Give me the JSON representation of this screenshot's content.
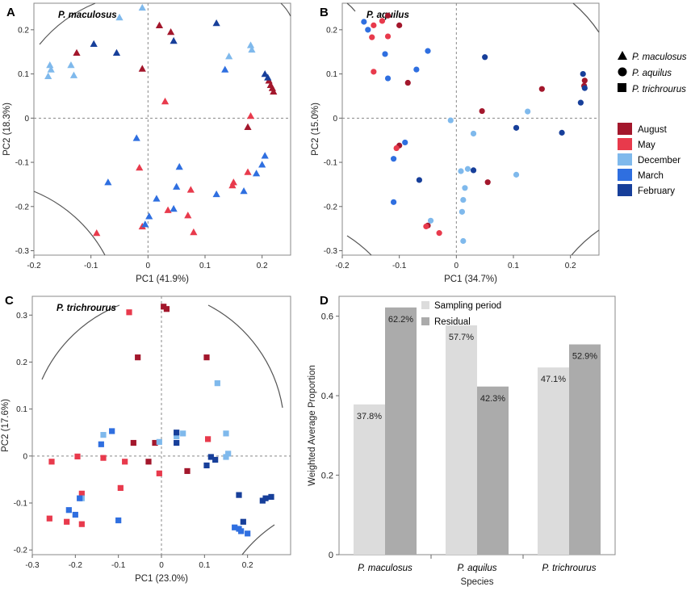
{
  "chart_data": [
    {
      "panel": "A",
      "type": "scatter",
      "title": "P. maculosus",
      "xlabel": "PC1 (41.9%)",
      "ylabel": "PC2 (18.3%)",
      "xlim": [
        -0.2,
        0.25
      ],
      "ylim": [
        -0.31,
        0.26
      ],
      "xticks": [
        -0.2,
        -0.1,
        0,
        0.1,
        0.2
      ],
      "yticks": [
        -0.3,
        -0.2,
        -0.1,
        0,
        0.1,
        0.2
      ],
      "xtick_labels": [
        "-0.2",
        "-0.1",
        "0",
        "0.1",
        "0.2"
      ],
      "ytick_labels": [
        "-0.3",
        "-0.2",
        "-0.1",
        "0",
        "0.1",
        "0.2"
      ],
      "marker": "triangle",
      "points": [
        {
          "x": -0.125,
          "y": 0.148,
          "m": "August"
        },
        {
          "x": 0.02,
          "y": 0.21,
          "m": "August"
        },
        {
          "x": 0.04,
          "y": 0.195,
          "m": "August"
        },
        {
          "x": -0.01,
          "y": 0.112,
          "m": "August"
        },
        {
          "x": 0.212,
          "y": 0.085,
          "m": "August"
        },
        {
          "x": 0.215,
          "y": 0.075,
          "m": "August"
        },
        {
          "x": 0.218,
          "y": 0.068,
          "m": "August"
        },
        {
          "x": 0.22,
          "y": 0.06,
          "m": "August"
        },
        {
          "x": 0.175,
          "y": -0.02,
          "m": "August"
        },
        {
          "x": 0.03,
          "y": 0.038,
          "m": "May"
        },
        {
          "x": 0.18,
          "y": 0.005,
          "m": "May"
        },
        {
          "x": -0.015,
          "y": -0.112,
          "m": "May"
        },
        {
          "x": 0.035,
          "y": -0.208,
          "m": "May"
        },
        {
          "x": 0.075,
          "y": -0.162,
          "m": "May"
        },
        {
          "x": 0.07,
          "y": -0.22,
          "m": "May"
        },
        {
          "x": 0.15,
          "y": -0.145,
          "m": "May"
        },
        {
          "x": 0.148,
          "y": -0.152,
          "m": "May"
        },
        {
          "x": 0.175,
          "y": -0.122,
          "m": "May"
        },
        {
          "x": -0.01,
          "y": -0.245,
          "m": "May"
        },
        {
          "x": 0.08,
          "y": -0.258,
          "m": "May"
        },
        {
          "x": -0.09,
          "y": -0.26,
          "m": "May"
        },
        {
          "x": -0.05,
          "y": 0.228,
          "m": "December"
        },
        {
          "x": -0.01,
          "y": 0.25,
          "m": "December"
        },
        {
          "x": -0.172,
          "y": 0.12,
          "m": "December"
        },
        {
          "x": -0.17,
          "y": 0.11,
          "m": "December"
        },
        {
          "x": -0.175,
          "y": 0.095,
          "m": "December"
        },
        {
          "x": -0.135,
          "y": 0.12,
          "m": "December"
        },
        {
          "x": -0.13,
          "y": 0.097,
          "m": "December"
        },
        {
          "x": 0.18,
          "y": 0.165,
          "m": "December"
        },
        {
          "x": 0.182,
          "y": 0.155,
          "m": "December"
        },
        {
          "x": 0.142,
          "y": 0.14,
          "m": "December"
        },
        {
          "x": -0.02,
          "y": -0.045,
          "m": "March"
        },
        {
          "x": 0.055,
          "y": -0.11,
          "m": "March"
        },
        {
          "x": 0.05,
          "y": -0.155,
          "m": "March"
        },
        {
          "x": 0.045,
          "y": -0.205,
          "m": "March"
        },
        {
          "x": 0.015,
          "y": -0.182,
          "m": "March"
        },
        {
          "x": -0.07,
          "y": -0.145,
          "m": "March"
        },
        {
          "x": 0.135,
          "y": 0.11,
          "m": "March"
        },
        {
          "x": 0.205,
          "y": -0.085,
          "m": "March"
        },
        {
          "x": 0.2,
          "y": -0.105,
          "m": "March"
        },
        {
          "x": 0.19,
          "y": -0.125,
          "m": "March"
        },
        {
          "x": 0.168,
          "y": -0.165,
          "m": "March"
        },
        {
          "x": 0.12,
          "y": -0.172,
          "m": "March"
        },
        {
          "x": 0.002,
          "y": -0.222,
          "m": "March"
        },
        {
          "x": -0.005,
          "y": -0.24,
          "m": "March"
        },
        {
          "x": -0.095,
          "y": 0.168,
          "m": "February"
        },
        {
          "x": -0.055,
          "y": 0.148,
          "m": "February"
        },
        {
          "x": 0.12,
          "y": 0.215,
          "m": "February"
        },
        {
          "x": 0.045,
          "y": 0.175,
          "m": "February"
        },
        {
          "x": 0.21,
          "y": 0.092,
          "m": "February"
        },
        {
          "x": 0.205,
          "y": 0.1,
          "m": "February"
        }
      ]
    },
    {
      "panel": "B",
      "type": "scatter",
      "title": "P. aquilus",
      "xlabel": "PC1 (34.7%)",
      "ylabel": "PC2 (15.0%)",
      "xlim": [
        -0.2,
        0.25
      ],
      "ylim": [
        -0.31,
        0.26
      ],
      "xticks": [
        -0.2,
        -0.1,
        0,
        0.1,
        0.2
      ],
      "yticks": [
        -0.3,
        -0.2,
        -0.1,
        0,
        0.1,
        0.2
      ],
      "xtick_labels": [
        "-0.2",
        "-0.1",
        "0",
        "0.1",
        "0.2"
      ],
      "ytick_labels": [
        "-0.3",
        "-0.2",
        "-0.1",
        "0",
        "0.1",
        "0.2"
      ],
      "marker": "circle",
      "points": [
        {
          "x": -0.12,
          "y": 0.232,
          "m": "August"
        },
        {
          "x": -0.1,
          "y": 0.21,
          "m": "August"
        },
        {
          "x": -0.085,
          "y": 0.08,
          "m": "August"
        },
        {
          "x": 0.15,
          "y": 0.066,
          "m": "August"
        },
        {
          "x": 0.225,
          "y": 0.085,
          "m": "August"
        },
        {
          "x": 0.224,
          "y": 0.073,
          "m": "August"
        },
        {
          "x": 0.045,
          "y": 0.016,
          "m": "August"
        },
        {
          "x": 0.055,
          "y": -0.145,
          "m": "August"
        },
        {
          "x": -0.1,
          "y": -0.062,
          "m": "August"
        },
        {
          "x": -0.05,
          "y": -0.243,
          "m": "August"
        },
        {
          "x": -0.145,
          "y": 0.21,
          "m": "May"
        },
        {
          "x": -0.13,
          "y": 0.22,
          "m": "May"
        },
        {
          "x": -0.148,
          "y": 0.183,
          "m": "May"
        },
        {
          "x": -0.12,
          "y": 0.185,
          "m": "May"
        },
        {
          "x": -0.145,
          "y": 0.105,
          "m": "May"
        },
        {
          "x": -0.105,
          "y": -0.068,
          "m": "May"
        },
        {
          "x": -0.053,
          "y": -0.245,
          "m": "May"
        },
        {
          "x": -0.03,
          "y": -0.26,
          "m": "May"
        },
        {
          "x": -0.045,
          "y": -0.232,
          "m": "December"
        },
        {
          "x": -0.01,
          "y": -0.005,
          "m": "December"
        },
        {
          "x": 0.03,
          "y": -0.035,
          "m": "December"
        },
        {
          "x": 0.125,
          "y": 0.015,
          "m": "December"
        },
        {
          "x": 0.105,
          "y": -0.128,
          "m": "December"
        },
        {
          "x": 0.008,
          "y": -0.12,
          "m": "December"
        },
        {
          "x": 0.02,
          "y": -0.115,
          "m": "December"
        },
        {
          "x": 0.015,
          "y": -0.158,
          "m": "December"
        },
        {
          "x": 0.012,
          "y": -0.185,
          "m": "December"
        },
        {
          "x": 0.01,
          "y": -0.212,
          "m": "December"
        },
        {
          "x": 0.012,
          "y": -0.278,
          "m": "December"
        },
        {
          "x": -0.162,
          "y": 0.218,
          "m": "March"
        },
        {
          "x": -0.155,
          "y": 0.2,
          "m": "March"
        },
        {
          "x": -0.125,
          "y": 0.145,
          "m": "March"
        },
        {
          "x": -0.07,
          "y": 0.11,
          "m": "March"
        },
        {
          "x": -0.05,
          "y": 0.152,
          "m": "March"
        },
        {
          "x": -0.12,
          "y": 0.09,
          "m": "March"
        },
        {
          "x": -0.09,
          "y": -0.055,
          "m": "March"
        },
        {
          "x": -0.11,
          "y": -0.092,
          "m": "March"
        },
        {
          "x": -0.11,
          "y": -0.19,
          "m": "March"
        },
        {
          "x": 0.05,
          "y": 0.138,
          "m": "February"
        },
        {
          "x": 0.222,
          "y": 0.1,
          "m": "February"
        },
        {
          "x": 0.225,
          "y": 0.068,
          "m": "February"
        },
        {
          "x": 0.218,
          "y": 0.035,
          "m": "February"
        },
        {
          "x": 0.185,
          "y": -0.033,
          "m": "February"
        },
        {
          "x": 0.105,
          "y": -0.022,
          "m": "February"
        },
        {
          "x": 0.03,
          "y": -0.118,
          "m": "February"
        },
        {
          "x": -0.065,
          "y": -0.14,
          "m": "February"
        }
      ]
    },
    {
      "panel": "C",
      "type": "scatter",
      "title": "P. trichrourus",
      "xlabel": "PC1 (23.0%)",
      "ylabel": "PC2 (17.6%)",
      "xlim": [
        -0.3,
        0.3
      ],
      "ylim": [
        -0.21,
        0.34
      ],
      "xticks": [
        -0.3,
        -0.2,
        -0.1,
        0,
        0.1,
        0.2
      ],
      "yticks": [
        -0.2,
        -0.1,
        0,
        0.1,
        0.2,
        0.3
      ],
      "xtick_labels": [
        "-0.3",
        "-0.2",
        "-0.1",
        "0",
        "0.1",
        "0.2"
      ],
      "ytick_labels": [
        "-0.2",
        "-0.1",
        "0",
        "0.1",
        "0.2",
        "0.3"
      ],
      "marker": "square",
      "points": [
        {
          "x": 0.005,
          "y": 0.318,
          "m": "August"
        },
        {
          "x": 0.012,
          "y": 0.313,
          "m": "August"
        },
        {
          "x": -0.055,
          "y": 0.21,
          "m": "August"
        },
        {
          "x": 0.105,
          "y": 0.21,
          "m": "August"
        },
        {
          "x": -0.065,
          "y": 0.028,
          "m": "August"
        },
        {
          "x": -0.015,
          "y": 0.028,
          "m": "August"
        },
        {
          "x": -0.03,
          "y": -0.012,
          "m": "August"
        },
        {
          "x": 0.06,
          "y": -0.032,
          "m": "August"
        },
        {
          "x": -0.075,
          "y": 0.306,
          "m": "May"
        },
        {
          "x": 0.108,
          "y": 0.036,
          "m": "May"
        },
        {
          "x": -0.255,
          "y": -0.012,
          "m": "May"
        },
        {
          "x": -0.195,
          "y": -0.001,
          "m": "May"
        },
        {
          "x": -0.135,
          "y": -0.004,
          "m": "May"
        },
        {
          "x": -0.085,
          "y": -0.012,
          "m": "May"
        },
        {
          "x": -0.005,
          "y": -0.037,
          "m": "May"
        },
        {
          "x": -0.095,
          "y": -0.068,
          "m": "May"
        },
        {
          "x": -0.185,
          "y": -0.08,
          "m": "May"
        },
        {
          "x": -0.26,
          "y": -0.133,
          "m": "May"
        },
        {
          "x": -0.22,
          "y": -0.14,
          "m": "May"
        },
        {
          "x": -0.185,
          "y": -0.145,
          "m": "May"
        },
        {
          "x": 0.13,
          "y": 0.155,
          "m": "December"
        },
        {
          "x": 0.15,
          "y": 0.048,
          "m": "December"
        },
        {
          "x": 0.05,
          "y": 0.048,
          "m": "December"
        },
        {
          "x": 0.035,
          "y": 0.042,
          "m": "December"
        },
        {
          "x": -0.005,
          "y": 0.03,
          "m": "December"
        },
        {
          "x": 0.15,
          "y": -0.002,
          "m": "December"
        },
        {
          "x": 0.155,
          "y": 0.005,
          "m": "December"
        },
        {
          "x": -0.135,
          "y": 0.045,
          "m": "December"
        },
        {
          "x": -0.185,
          "y": -0.09,
          "m": "December"
        },
        {
          "x": -0.115,
          "y": 0.053,
          "m": "March"
        },
        {
          "x": -0.14,
          "y": 0.025,
          "m": "March"
        },
        {
          "x": -0.19,
          "y": -0.09,
          "m": "March"
        },
        {
          "x": -0.215,
          "y": -0.115,
          "m": "March"
        },
        {
          "x": -0.2,
          "y": -0.125,
          "m": "March"
        },
        {
          "x": -0.1,
          "y": -0.137,
          "m": "March"
        },
        {
          "x": 0.17,
          "y": -0.152,
          "m": "March"
        },
        {
          "x": 0.18,
          "y": -0.155,
          "m": "March"
        },
        {
          "x": 0.185,
          "y": -0.16,
          "m": "March"
        },
        {
          "x": 0.2,
          "y": -0.165,
          "m": "March"
        },
        {
          "x": 0.035,
          "y": 0.05,
          "m": "February"
        },
        {
          "x": 0.035,
          "y": 0.028,
          "m": "February"
        },
        {
          "x": 0.115,
          "y": -0.002,
          "m": "February"
        },
        {
          "x": 0.125,
          "y": -0.008,
          "m": "February"
        },
        {
          "x": 0.105,
          "y": -0.02,
          "m": "February"
        },
        {
          "x": 0.18,
          "y": -0.083,
          "m": "February"
        },
        {
          "x": 0.19,
          "y": -0.14,
          "m": "February"
        },
        {
          "x": 0.235,
          "y": -0.095,
          "m": "February"
        },
        {
          "x": 0.242,
          "y": -0.09,
          "m": "February"
        },
        {
          "x": 0.255,
          "y": -0.087,
          "m": "February"
        }
      ]
    },
    {
      "panel": "D",
      "type": "bar",
      "xlabel": "Species",
      "ylabel": "Weighted Average Proportion",
      "ylim": [
        0,
        0.65
      ],
      "yticks": [
        0,
        0.2,
        0.4,
        0.6
      ],
      "ytick_labels": [
        "0",
        "0.2",
        "0.4",
        "0.6"
      ],
      "categories": [
        "P. maculosus",
        "P. aquilus",
        "P. trichrourus"
      ],
      "series": [
        {
          "name": "Sampling period",
          "values": [
            0.378,
            0.577,
            0.471
          ],
          "labels": [
            "37.8%",
            "57.7%",
            "47.1%"
          ],
          "color": "#dcdcdc"
        },
        {
          "name": "Residual",
          "values": [
            0.622,
            0.423,
            0.529
          ],
          "labels": [
            "62.2%",
            "42.3%",
            "52.9%"
          ],
          "color": "#ababab"
        }
      ]
    }
  ],
  "legend": {
    "species": [
      {
        "label": "P. maculosus",
        "marker": "triangle"
      },
      {
        "label": "P. aquilus",
        "marker": "circle"
      },
      {
        "label": "P. trichrourus",
        "marker": "square"
      }
    ],
    "months": [
      {
        "label": "August",
        "color": "#a3172c"
      },
      {
        "label": "May",
        "color": "#e83a4c"
      },
      {
        "label": "December",
        "color": "#7fb9ec"
      },
      {
        "label": "March",
        "color": "#2f6fe0"
      },
      {
        "label": "February",
        "color": "#173f9a"
      }
    ]
  },
  "panel_labels": [
    "A",
    "B",
    "C",
    "D"
  ]
}
